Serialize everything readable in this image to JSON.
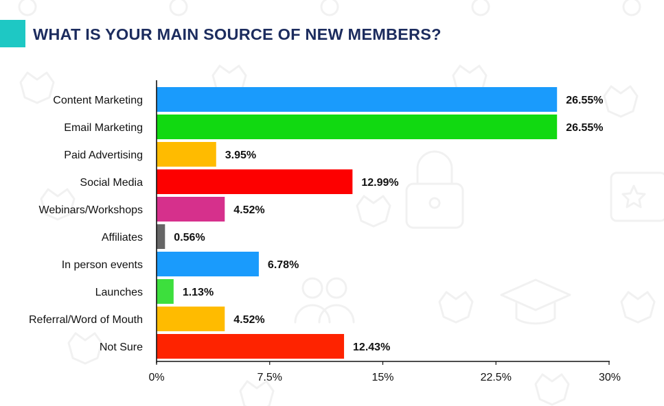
{
  "title": "WHAT IS YOUR MAIN SOURCE OF NEW MEMBERS?",
  "colors": {
    "title": "#1c2c5e",
    "accent": "#1ec8c4",
    "axis": "#111111",
    "label": "#111111",
    "pattern": "#f1f1f1"
  },
  "chart_data": {
    "type": "bar",
    "orientation": "horizontal",
    "categories": [
      "Content Marketing",
      "Email Marketing",
      "Paid Advertising",
      "Social Media",
      "Webinars/Workshops",
      "Affiliates",
      "In person events",
      "Launches",
      "Referral/Word of Mouth",
      "Not Sure"
    ],
    "values": [
      26.55,
      26.55,
      3.95,
      12.99,
      4.52,
      0.56,
      6.78,
      1.13,
      4.52,
      12.43
    ],
    "value_labels": [
      "26.55%",
      "26.55%",
      "3.95%",
      "12.99%",
      "4.52%",
      "0.56%",
      "6.78%",
      "1.13%",
      "4.52%",
      "12.43%"
    ],
    "colors": [
      "#1a9bfc",
      "#11d911",
      "#ffbb00",
      "#fd0000",
      "#d6308c",
      "#666666",
      "#1a9bfc",
      "#3ddf3d",
      "#ffbb00",
      "#fe2300"
    ],
    "xlim": [
      0,
      30
    ],
    "xticks": [
      0,
      7.5,
      15,
      22.5,
      30
    ],
    "xtick_labels": [
      "0%",
      "7.5%",
      "15%",
      "22.5%",
      "30%"
    ],
    "grid": false,
    "legend": "none",
    "xlabel": "",
    "ylabel": ""
  }
}
